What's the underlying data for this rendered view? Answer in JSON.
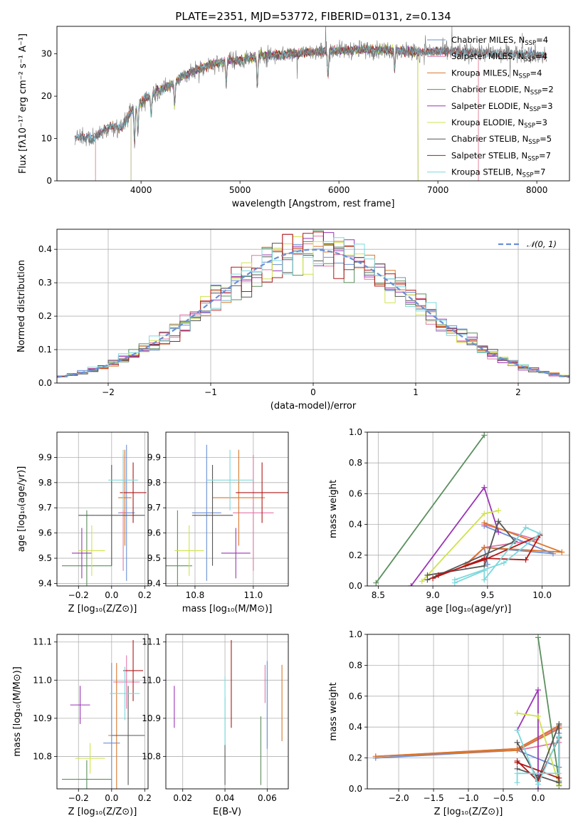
{
  "colors": {
    "chabrier_miles": "#6a8fd4",
    "salpeter_miles": "#e377a8",
    "kroupa_miles": "#d9762c",
    "chabrier_elodie": "#5b8f5e",
    "salpeter_elodie": "#9b35b5",
    "kroupa_elodie": "#cfe34d",
    "chabrier_stelib": "#555555",
    "salpeter_stelib": "#b01818",
    "kroupa_stelib": "#7dd8dc",
    "normal": "#6a8fd4"
  },
  "chart_data": [
    {
      "id": "spectrum",
      "type": "line",
      "title": "PLATE=2351, MJD=53772, FIBERID=0131, z=0.134",
      "xlabel": "wavelength [Angstrom, rest frame]",
      "ylabel": "Flux [fλ10⁻¹⁷ erg cm⁻² s⁻¹ A⁻¹]",
      "xlim": [
        3150,
        8330
      ],
      "ylim": [
        0,
        36.5
      ],
      "xticks": [
        "4000",
        "5000",
        "6000",
        "7000",
        "8000"
      ],
      "yticks": [
        "0",
        "10",
        "20",
        "30"
      ],
      "x_range": [
        3330,
        8100
      ],
      "legend": [
        {
          "key": "chabrier_miles",
          "label": "Chabrier MILES, N",
          "sub": "SSP",
          "tail": "=4"
        },
        {
          "key": "salpeter_miles",
          "label": "Salpeter MILES, N",
          "sub": "SSP",
          "tail": "=4"
        },
        {
          "key": "kroupa_miles",
          "label": "Kroupa MILES, N",
          "sub": "SSP",
          "tail": "=4"
        },
        {
          "key": "chabrier_elodie",
          "label": "Chabrier ELODIE, N",
          "sub": "SSP",
          "tail": "=2"
        },
        {
          "key": "salpeter_elodie",
          "label": "Salpeter ELODIE, N",
          "sub": "SSP",
          "tail": "=3"
        },
        {
          "key": "kroupa_elodie",
          "label": "Kroupa ELODIE, N",
          "sub": "SSP",
          "tail": "=3"
        },
        {
          "key": "chabrier_stelib",
          "label": "Chabrier STELIB, N",
          "sub": "SSP",
          "tail": "=5"
        },
        {
          "key": "salpeter_stelib",
          "label": "Salpeter STELIB, N",
          "sub": "SSP",
          "tail": "=7"
        },
        {
          "key": "kroupa_stelib",
          "label": "Kroupa STELIB, N",
          "sub": "SSP",
          "tail": "=7"
        }
      ],
      "model_ranges": {
        "salpeter_miles": [
          3540,
          7410
        ],
        "kroupa_miles": [
          3540,
          7410
        ],
        "chabrier_elodie": [
          3900,
          6800
        ],
        "kroupa_elodie": [
          3900,
          6800
        ],
        "salpeter_elodie": [
          3900,
          6800
        ]
      },
      "continuum_knots": [
        [
          3330,
          10.5
        ],
        [
          3500,
          10.0
        ],
        [
          3600,
          11.5
        ],
        [
          3700,
          13.0
        ],
        [
          3800,
          12.5
        ],
        [
          3900,
          16.5
        ],
        [
          4000,
          18.5
        ],
        [
          4100,
          20.5
        ],
        [
          4200,
          21.5
        ],
        [
          4300,
          22.5
        ],
        [
          4400,
          24.5
        ],
        [
          4500,
          25.5
        ],
        [
          4600,
          26.5
        ],
        [
          4700,
          27.5
        ],
        [
          4800,
          28.0
        ],
        [
          4900,
          28.5
        ],
        [
          5000,
          28.5
        ],
        [
          5200,
          29.5
        ],
        [
          5400,
          29.8
        ],
        [
          5600,
          30.2
        ],
        [
          5800,
          30.5
        ],
        [
          6000,
          30.8
        ],
        [
          6200,
          31.0
        ],
        [
          6400,
          31.0
        ],
        [
          6600,
          30.8
        ],
        [
          6800,
          30.5
        ],
        [
          7000,
          30.5
        ],
        [
          7200,
          30.5
        ],
        [
          7400,
          30.3
        ],
        [
          7600,
          30.0
        ],
        [
          7800,
          30.0
        ],
        [
          8000,
          30.0
        ],
        [
          8100,
          29.5
        ]
      ]
    },
    {
      "id": "residual_hist",
      "type": "step",
      "xlabel": "(data-model)/error",
      "ylabel": "Normed distribution",
      "xlim": [
        -2.5,
        2.5
      ],
      "ylim": [
        0,
        0.46
      ],
      "xticks": [
        "−2",
        "−1",
        "0",
        "1",
        "2"
      ],
      "yticks": [
        "0.0",
        "0.1",
        "0.2",
        "0.3",
        "0.4"
      ],
      "legend_label": "𝒩(0, 1)",
      "bin_width": 0.1,
      "bin_start": -2.5,
      "series_keys": [
        "chabrier_miles",
        "salpeter_miles",
        "kroupa_miles",
        "chabrier_elodie",
        "salpeter_elodie",
        "kroupa_elodie",
        "chabrier_stelib",
        "salpeter_stelib",
        "kroupa_stelib"
      ]
    },
    {
      "id": "age_vs_z",
      "type": "errorbar",
      "xlabel": "Z [log₁₀(Z/Z⊙)]",
      "ylabel": "age  [log₁₀(age/yr)]",
      "xlim": [
        -0.33,
        0.22
      ],
      "ylim": [
        9.39,
        10.0
      ],
      "xticks": [
        "−0.2",
        "0.0",
        "0.2"
      ],
      "yticks": [
        "9.4",
        "9.5",
        "9.6",
        "9.7",
        "9.8",
        "9.9"
      ],
      "points": [
        {
          "key": "chabrier_miles",
          "x": 0.09,
          "xerr": 0.05,
          "y": 9.68,
          "yerr": 0.27
        },
        {
          "key": "salpeter_miles",
          "x": 0.07,
          "xerr": 0.02,
          "y": 9.68,
          "yerr": 0.23
        },
        {
          "key": "kroupa_miles",
          "x": 0.08,
          "xerr": 0.04,
          "y": 9.74,
          "yerr": 0.19
        },
        {
          "key": "chabrier_elodie",
          "x": -0.15,
          "xerr": 0.15,
          "y": 9.47,
          "yerr": 0.22
        },
        {
          "key": "salpeter_elodie",
          "x": -0.18,
          "xerr": 0.06,
          "y": 9.52,
          "yerr": 0.1
        },
        {
          "key": "kroupa_elodie",
          "x": -0.12,
          "xerr": 0.08,
          "y": 9.53,
          "yerr": 0.1
        },
        {
          "key": "chabrier_stelib",
          "x": 0.0,
          "xerr": 0.2,
          "y": 9.67,
          "yerr": 0.2
        },
        {
          "key": "salpeter_stelib",
          "x": 0.13,
          "xerr": 0.08,
          "y": 9.76,
          "yerr": 0.12
        },
        {
          "key": "kroupa_stelib",
          "x": 0.07,
          "xerr": 0.09,
          "y": 9.81,
          "yerr": 0.12
        }
      ]
    },
    {
      "id": "age_vs_mass",
      "type": "errorbar",
      "xlabel": "mass [log₁₀(M/M⊙)]",
      "ylabel": "",
      "xlim": [
        10.7,
        11.12
      ],
      "ylim": [
        9.39,
        10.0
      ],
      "xticks": [
        "10.8",
        "11.0"
      ],
      "yticks": [
        "9.4",
        "9.5",
        "9.6",
        "9.7",
        "9.8",
        "9.9"
      ],
      "points": [
        {
          "key": "chabrier_miles",
          "x": 10.84,
          "xerr": 0.05,
          "y": 9.68,
          "yerr": 0.27
        },
        {
          "key": "salpeter_miles",
          "x": 11.0,
          "xerr": 0.07,
          "y": 9.68,
          "yerr": 0.23
        },
        {
          "key": "kroupa_miles",
          "x": 10.95,
          "xerr": 0.09,
          "y": 9.74,
          "yerr": 0.19
        },
        {
          "key": "chabrier_elodie",
          "x": 10.74,
          "xerr": 0.05,
          "y": 9.47,
          "yerr": 0.22
        },
        {
          "key": "salpeter_elodie",
          "x": 10.94,
          "xerr": 0.05,
          "y": 9.52,
          "yerr": 0.1
        },
        {
          "key": "kroupa_elodie",
          "x": 10.78,
          "xerr": 0.05,
          "y": 9.53,
          "yerr": 0.1
        },
        {
          "key": "chabrier_stelib",
          "x": 10.86,
          "xerr": 0.07,
          "y": 9.67,
          "yerr": 0.2
        },
        {
          "key": "salpeter_stelib",
          "x": 11.03,
          "xerr": 0.09,
          "y": 9.76,
          "yerr": 0.12
        },
        {
          "key": "kroupa_stelib",
          "x": 10.92,
          "xerr": 0.08,
          "y": 9.81,
          "yerr": 0.12
        }
      ]
    },
    {
      "id": "weight_vs_age",
      "type": "line",
      "xlabel": "age  [log₁₀(age/yr)]",
      "ylabel": "mass weight",
      "xlim": [
        8.4,
        10.25
      ],
      "ylim": [
        0,
        1.0
      ],
      "xticks": [
        "8.5",
        "9.0",
        "9.5",
        "10.0"
      ],
      "yticks": [
        "0.0",
        "0.2",
        "0.4",
        "0.6",
        "0.8",
        "1.0"
      ],
      "series": [
        {
          "key": "chabrier_miles",
          "x": [
            9.47,
            10.1,
            9.47,
            9.5
          ],
          "y": [
            0.39,
            0.21,
            0.25,
            0.14
          ]
        },
        {
          "key": "salpeter_miles",
          "x": [
            9.47,
            9.95,
            9.47,
            9.3
          ],
          "y": [
            0.4,
            0.3,
            0.25,
            0.13
          ]
        },
        {
          "key": "kroupa_miles",
          "x": [
            9.47,
            10.18,
            9.47,
            9.3
          ],
          "y": [
            0.41,
            0.22,
            0.25,
            0.14
          ]
        },
        {
          "key": "chabrier_elodie",
          "x": [
            9.47,
            8.48
          ],
          "y": [
            0.98,
            0.02
          ]
        },
        {
          "key": "salpeter_elodie",
          "x": [
            8.8,
            9.47,
            9.6
          ],
          "y": [
            0.0,
            0.64,
            0.35
          ]
        },
        {
          "key": "kroupa_elodie",
          "x": [
            8.9,
            9.47,
            9.6
          ],
          "y": [
            0.03,
            0.47,
            0.49
          ]
        },
        {
          "key": "chabrier_stelib",
          "x": [
            8.95,
            9.47,
            9.6,
            9.75,
            8.95
          ],
          "y": [
            0.07,
            0.13,
            0.42,
            0.29,
            0.04
          ]
        },
        {
          "key": "salpeter_stelib",
          "x": [
            9.0,
            9.47,
            9.85,
            9.98,
            9.47,
            9.05
          ],
          "y": [
            0.05,
            0.18,
            0.17,
            0.33,
            0.17,
            0.07
          ]
        },
        {
          "key": "kroupa_stelib",
          "x": [
            9.2,
            9.47,
            9.47,
            9.85,
            9.98,
            9.65,
            9.2
          ],
          "y": [
            0.02,
            0.1,
            0.04,
            0.38,
            0.34,
            0.15,
            0.04
          ]
        }
      ]
    },
    {
      "id": "mass_vs_z",
      "type": "errorbar",
      "xlabel": "Z [log₁₀(Z/Z⊙)]",
      "ylabel": "mass [log₁₀(M/M⊙)]",
      "xlim": [
        -0.33,
        0.22
      ],
      "ylim": [
        10.715,
        11.12
      ],
      "xticks": [
        "−0.2",
        "0.0",
        "0.2"
      ],
      "yticks": [
        "10.8",
        "10.9",
        "11.0",
        "11.1"
      ],
      "points": [
        {
          "key": "chabrier_miles",
          "x": 0.0,
          "xerr": 0.05,
          "y": 10.835,
          "yerr": 0.21
        },
        {
          "key": "salpeter_miles",
          "x": 0.09,
          "xerr": 0.08,
          "y": 10.995,
          "yerr": 0.07
        },
        {
          "key": "kroupa_miles",
          "x": 0.03,
          "xerr": 0.05,
          "y": 10.855,
          "yerr": 0.19
        },
        {
          "key": "chabrier_elodie",
          "x": -0.15,
          "xerr": 0.15,
          "y": 10.74,
          "yerr": 0.05
        },
        {
          "key": "salpeter_elodie",
          "x": -0.19,
          "xerr": 0.06,
          "y": 10.935,
          "yerr": 0.05
        },
        {
          "key": "kroupa_elodie",
          "x": -0.13,
          "xerr": 0.09,
          "y": 10.795,
          "yerr": 0.04
        },
        {
          "key": "chabrier_stelib",
          "x": 0.1,
          "xerr": 0.1,
          "y": 10.855,
          "yerr": 0.13
        },
        {
          "key": "salpeter_stelib",
          "x": 0.13,
          "xerr": 0.06,
          "y": 11.025,
          "yerr": 0.08
        },
        {
          "key": "kroupa_stelib",
          "x": 0.08,
          "xerr": 0.09,
          "y": 10.965,
          "yerr": 0.07
        }
      ]
    },
    {
      "id": "mass_vs_ebv",
      "type": "errorbar",
      "xlabel": "E(B-V)",
      "ylabel": "",
      "xlim": [
        0.012,
        0.07
      ],
      "ylim": [
        10.715,
        11.12
      ],
      "xticks": [
        "0.02",
        "0.04",
        "0.06"
      ],
      "yticks": [
        "10.8",
        "10.9",
        "11.0",
        "11.1"
      ],
      "points": [
        {
          "key": "chabrier_miles",
          "x": 0.06,
          "xerr": 0.0,
          "y": 10.935,
          "yerr": 0.115
        },
        {
          "key": "salpeter_miles",
          "x": 0.059,
          "xerr": 0.0,
          "y": 10.99,
          "yerr": 0.05
        },
        {
          "key": "kroupa_miles",
          "x": 0.067,
          "xerr": 0.0,
          "y": 10.94,
          "yerr": 0.1
        },
        {
          "key": "chabrier_elodie",
          "x": 0.057,
          "xerr": 0.0,
          "y": 10.815,
          "yerr": 0.09
        },
        {
          "key": "salpeter_elodie",
          "x": 0.016,
          "xerr": 0.0,
          "y": 10.93,
          "yerr": 0.055
        },
        {
          "key": "kroupa_elodie",
          "x": 0.04,
          "xerr": 0.0,
          "y": 10.78,
          "yerr": 0.03
        },
        {
          "key": "chabrier_stelib",
          "x": 0.04,
          "xerr": 0.0,
          "y": 10.84,
          "yerr": 0.115
        },
        {
          "key": "salpeter_stelib",
          "x": 0.043,
          "xerr": 0.0,
          "y": 10.99,
          "yerr": 0.115
        },
        {
          "key": "kroupa_stelib",
          "x": 0.04,
          "xerr": 0.0,
          "y": 10.92,
          "yerr": 0.09
        }
      ]
    },
    {
      "id": "weight_vs_z",
      "type": "line",
      "xlabel": "Z [log₁₀(Z/Z⊙)]",
      "ylabel": "mass weight",
      "xlim": [
        -2.45,
        0.45
      ],
      "ylim": [
        0,
        1.0
      ],
      "xticks": [
        "−2.0",
        "−1.5",
        "−1.0",
        "−0.5",
        "0.0"
      ],
      "yticks": [
        "0.0",
        "0.2",
        "0.4",
        "0.6",
        "0.8",
        "1.0"
      ],
      "series": [
        {
          "key": "chabrier_miles",
          "x": [
            0.3,
            -0.3,
            -2.33,
            -0.3,
            0.3,
            0.3
          ],
          "y": [
            0.39,
            0.25,
            0.2,
            0.25,
            0.14,
            0.36
          ]
        },
        {
          "key": "salpeter_miles",
          "x": [
            0.3,
            -0.3,
            -2.33,
            -0.3,
            0.3
          ],
          "y": [
            0.4,
            0.26,
            0.21,
            0.25,
            0.3
          ]
        },
        {
          "key": "kroupa_miles",
          "x": [
            0.3,
            -0.3,
            -2.33,
            -0.3,
            0.3
          ],
          "y": [
            0.41,
            0.26,
            0.21,
            0.25,
            0.39
          ]
        },
        {
          "key": "chabrier_elodie",
          "x": [
            0.0,
            0.3,
            0.3
          ],
          "y": [
            0.98,
            0.05,
            0.02
          ]
        },
        {
          "key": "salpeter_elodie",
          "x": [
            -0.3,
            0.0,
            0.0
          ],
          "y": [
            0.38,
            0.64,
            0.0
          ]
        },
        {
          "key": "kroupa_elodie",
          "x": [
            -0.3,
            0.0,
            0.3
          ],
          "y": [
            0.49,
            0.47,
            0.03
          ]
        },
        {
          "key": "chabrier_stelib",
          "x": [
            -0.3,
            0.0,
            0.3,
            0.3,
            -0.3
          ],
          "y": [
            0.3,
            0.06,
            0.42,
            0.04,
            0.13
          ]
        },
        {
          "key": "salpeter_stelib",
          "x": [
            -0.3,
            0.0,
            0.3,
            0.3,
            -0.3
          ],
          "y": [
            0.18,
            0.05,
            0.33,
            0.07,
            0.17
          ]
        },
        {
          "key": "kroupa_stelib",
          "x": [
            -0.3,
            0.0,
            0.3,
            0.3,
            -0.3,
            -0.3
          ],
          "y": [
            0.38,
            0.03,
            0.34,
            0.1,
            0.1,
            0.04
          ]
        }
      ]
    }
  ]
}
